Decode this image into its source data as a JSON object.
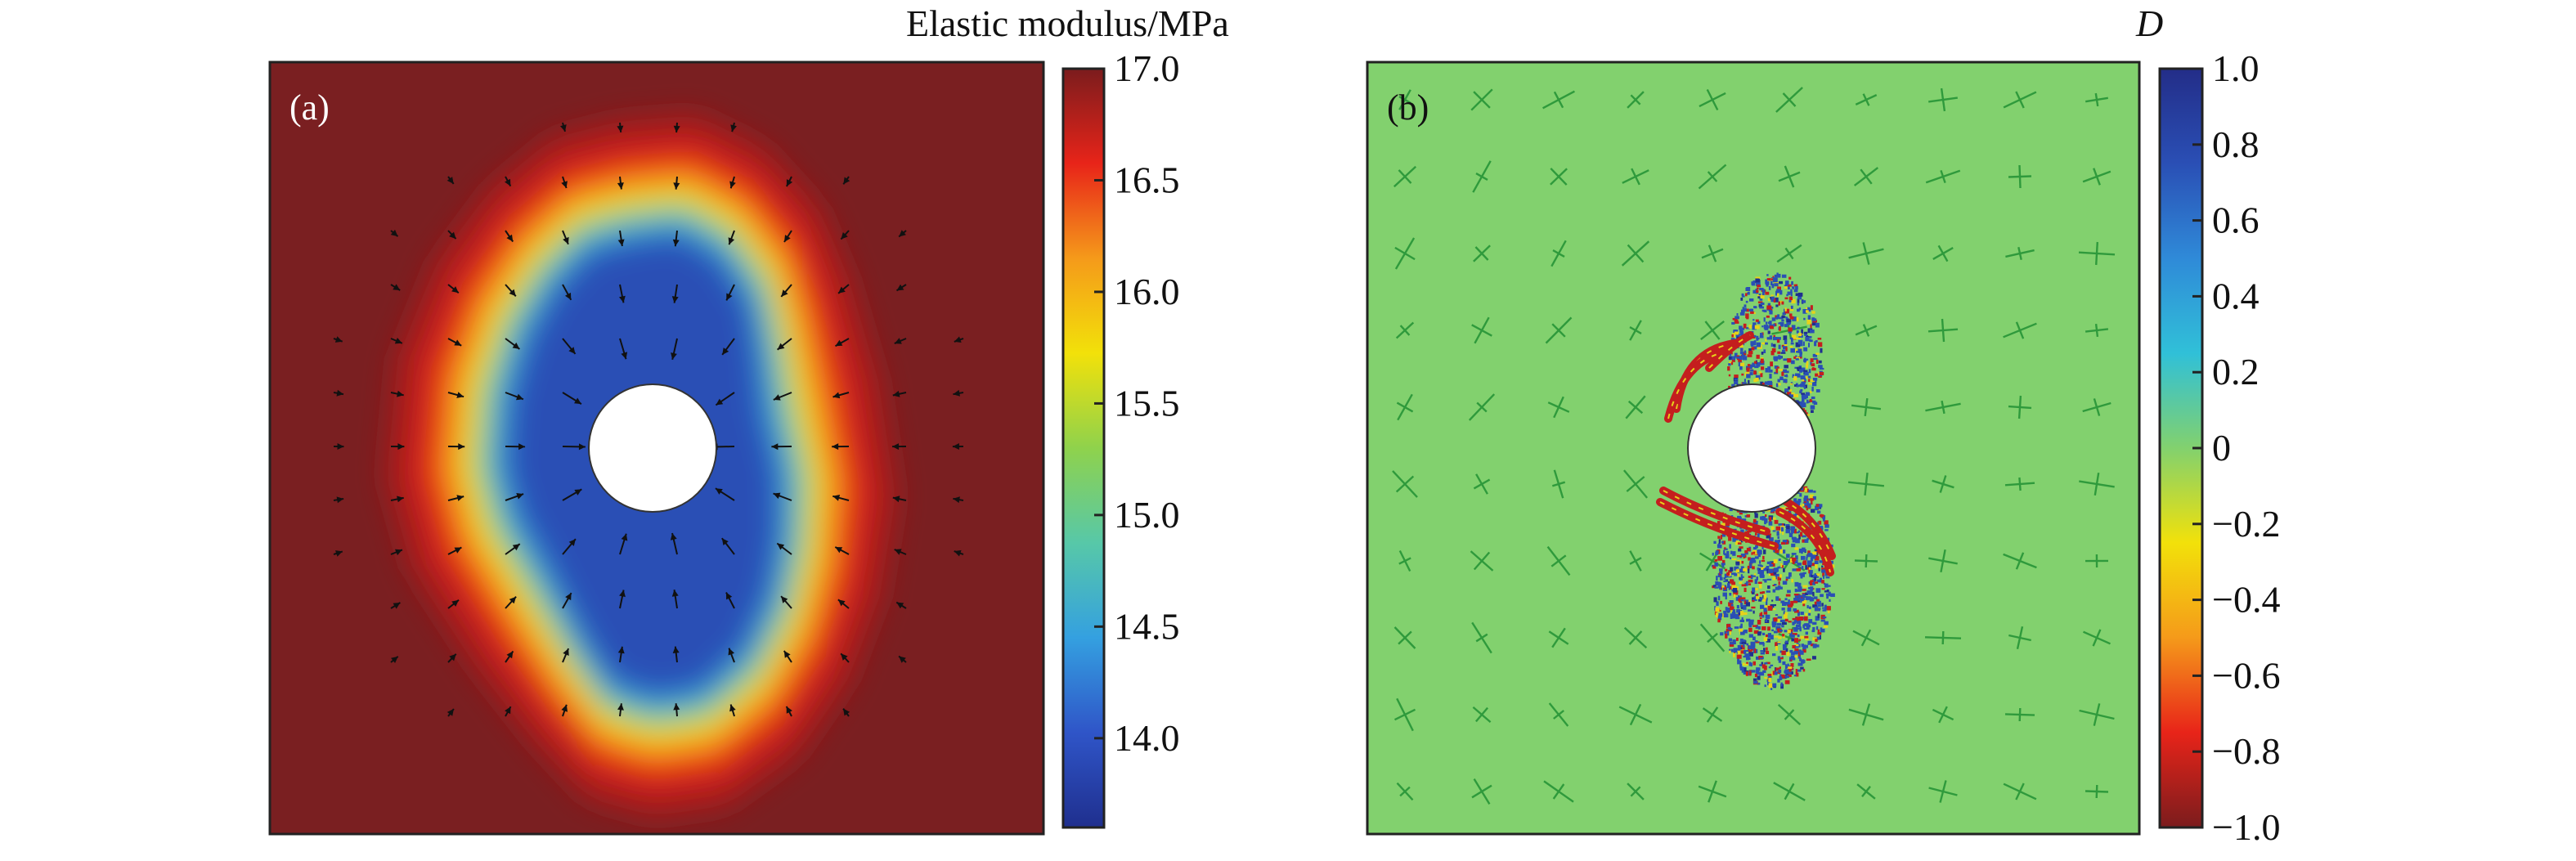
{
  "panel_a": {
    "label": "(a)",
    "colorbar": {
      "title": "Elastic modulus/MPa",
      "ticks": [
        "17.0",
        "16.5",
        "16.0",
        "15.5",
        "15.0",
        "14.5",
        "14.0"
      ],
      "min": 13.6,
      "max": 17.0,
      "colormap": [
        "#1f2f8e",
        "#2f55c8",
        "#34a0e0",
        "#57c8a8",
        "#8fd24c",
        "#f2e10a",
        "#f59a1a",
        "#e82419",
        "#7b1c1d"
      ]
    },
    "background_color": "#7a1f21",
    "zone_colors": [
      "#b31e1e",
      "#ea2a18",
      "#f7941b",
      "#f3e31a",
      "#8fd24c",
      "#3cb9d6",
      "#2e78d2",
      "#2a4fb5"
    ]
  },
  "panel_b": {
    "label": "(b)",
    "colorbar": {
      "title": "D",
      "ticks": [
        "1.0",
        "0.8",
        "0.6",
        "0.4",
        "0.2",
        "0",
        "−0.2",
        "−0.4",
        "−0.6",
        "−0.8",
        "−1.0"
      ],
      "min": -1.0,
      "max": 1.0,
      "colormap": [
        "#7b1c1d",
        "#e82419",
        "#f59a1a",
        "#f2e10a",
        "#82d16e",
        "#30c0d8",
        "#2f8ad8",
        "#2a4fb5",
        "#232d88"
      ]
    },
    "background_color": "#82d16e",
    "damage_colors": [
      "#c41e1e",
      "#2a4fb5",
      "#e7d21a",
      "#1f2f8e"
    ]
  }
}
